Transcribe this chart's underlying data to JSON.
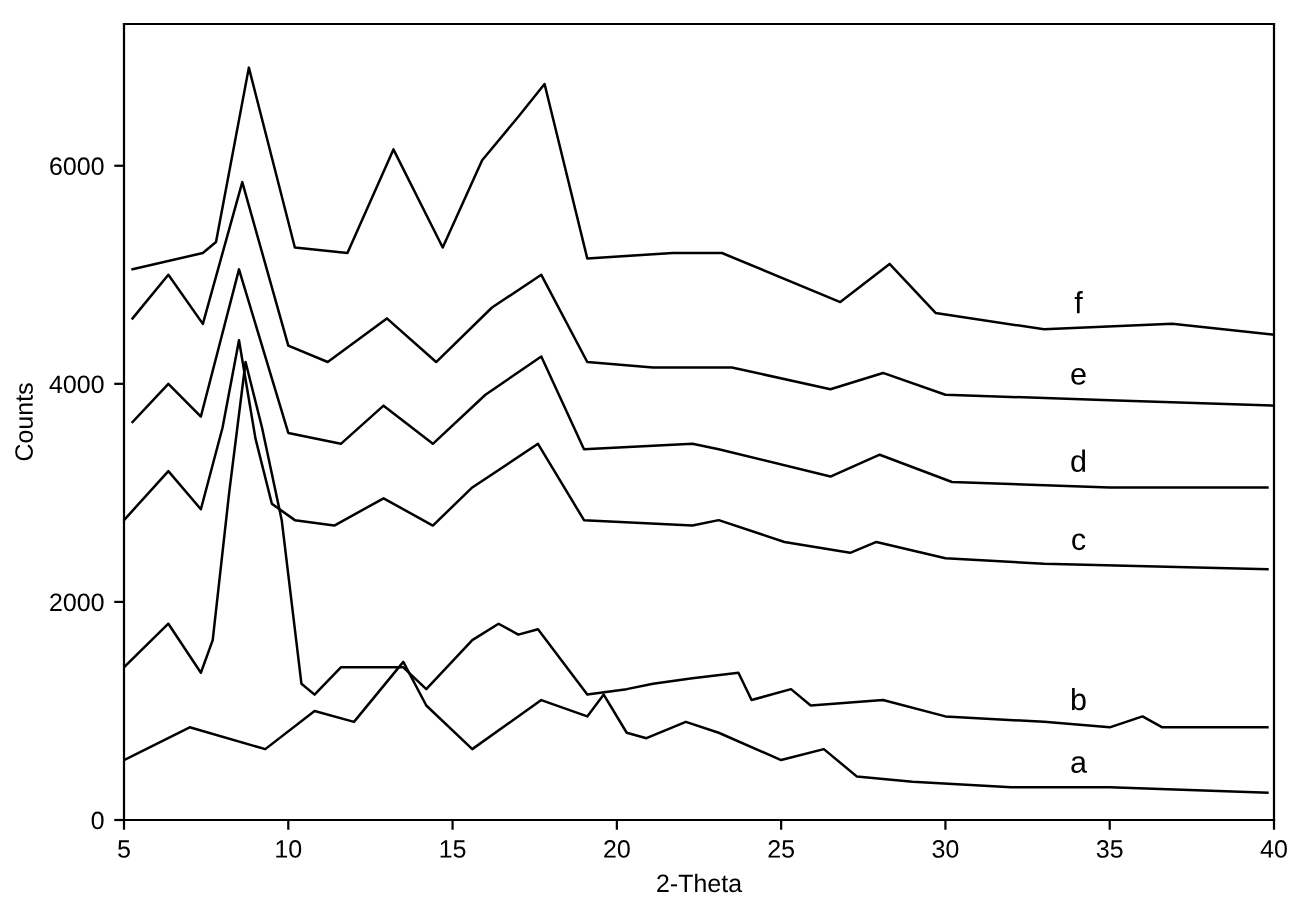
{
  "chart_data": {
    "type": "line",
    "xlabel": "2-Theta",
    "ylabel": "Counts",
    "xlim": [
      5,
      40
    ],
    "xticks": [
      5,
      10,
      15,
      20,
      25,
      30,
      35,
      40
    ],
    "ylim": [
      0,
      7300
    ],
    "yticks": [
      0,
      2000,
      4000,
      6000
    ],
    "grid": false,
    "legend": false,
    "marker": "none",
    "line_style": "solid",
    "series": [
      {
        "name": "a",
        "color": "#000000",
        "x": [
          5.0,
          7.0,
          9.3,
          10.8,
          12.0,
          13.5,
          14.2,
          15.6,
          17.7,
          19.1,
          19.6,
          20.3,
          20.9,
          22.1,
          23.1,
          25.0,
          26.3,
          27.3,
          29.0,
          32.0,
          35.0,
          39.8
        ],
        "values": [
          550,
          850,
          650,
          1000,
          900,
          1450,
          1050,
          650,
          1100,
          950,
          1150,
          800,
          750,
          900,
          800,
          550,
          650,
          400,
          350,
          300,
          300,
          250
        ]
      },
      {
        "name": "b",
        "color": "#000000",
        "x": [
          5.0,
          6.35,
          7.34,
          7.7,
          8.2,
          8.7,
          9.2,
          9.8,
          10.4,
          10.8,
          11.6,
          12.8,
          13.5,
          14.2,
          15.6,
          16.4,
          17.0,
          17.6,
          18.6,
          19.1,
          20.3,
          21.1,
          22.3,
          23.7,
          24.1,
          25.3,
          25.9,
          28.1,
          30.0,
          33.0,
          35.0,
          36.0,
          36.6,
          39.8
        ],
        "values": [
          1400,
          1800,
          1350,
          1650,
          3000,
          4200,
          3600,
          2750,
          1250,
          1150,
          1400,
          1400,
          1400,
          1200,
          1650,
          1800,
          1700,
          1750,
          1350,
          1150,
          1200,
          1250,
          1300,
          1350,
          1100,
          1200,
          1050,
          1100,
          950,
          900,
          850,
          950,
          850,
          850
        ]
      },
      {
        "name": "c",
        "color": "#000000",
        "x": [
          5.0,
          6.35,
          7.34,
          8.0,
          8.5,
          9.0,
          9.5,
          10.2,
          11.4,
          12.9,
          14.4,
          15.6,
          17.6,
          19.0,
          22.3,
          23.1,
          25.1,
          27.1,
          27.9,
          30.0,
          33.0,
          39.8
        ],
        "values": [
          2750,
          3200,
          2850,
          3600,
          4400,
          3500,
          2900,
          2750,
          2700,
          2950,
          2700,
          3050,
          3450,
          2750,
          2700,
          2750,
          2550,
          2450,
          2550,
          2400,
          2350,
          2300
        ]
      },
      {
        "name": "d",
        "color": "#000000",
        "x": [
          5.26,
          6.35,
          7.34,
          8.5,
          10.0,
          11.6,
          12.9,
          14.4,
          16.0,
          17.7,
          19.0,
          22.3,
          23.1,
          26.5,
          28.0,
          30.2,
          35.0,
          39.8
        ],
        "values": [
          3650,
          4000,
          3700,
          5050,
          3550,
          3450,
          3800,
          3450,
          3900,
          4250,
          3400,
          3450,
          3400,
          3150,
          3350,
          3100,
          3050,
          3050
        ]
      },
      {
        "name": "e",
        "color": "#000000",
        "x": [
          5.26,
          6.35,
          7.4,
          8.6,
          10.0,
          11.2,
          13.0,
          14.5,
          16.2,
          17.7,
          19.1,
          21.1,
          23.5,
          26.5,
          28.1,
          30.0,
          35.0,
          40.0
        ],
        "values": [
          4600,
          5000,
          4550,
          5850,
          4350,
          4200,
          4600,
          4200,
          4700,
          5000,
          4200,
          4150,
          4150,
          3950,
          4100,
          3900,
          3850,
          3800
        ]
      },
      {
        "name": "f",
        "color": "#000000",
        "x": [
          5.26,
          7.4,
          7.8,
          8.8,
          10.2,
          11.8,
          13.2,
          14.7,
          15.9,
          17.0,
          17.8,
          19.1,
          21.7,
          23.2,
          26.8,
          28.3,
          29.7,
          33.0,
          36.9,
          40.0
        ],
        "values": [
          5050,
          5200,
          5300,
          6900,
          5250,
          5200,
          6150,
          5250,
          6050,
          6450,
          6750,
          5150,
          5200,
          5200,
          4750,
          5100,
          4650,
          4500,
          4550,
          4450
        ]
      }
    ]
  }
}
